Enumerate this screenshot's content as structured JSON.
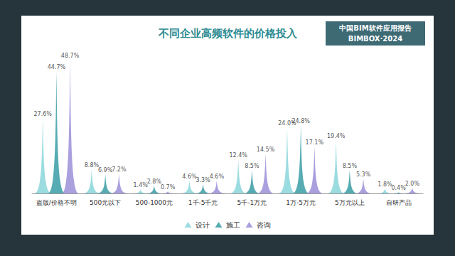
{
  "chart_data": {
    "type": "bar",
    "title": "不同企业高频软件的价格投入",
    "annotations": [
      "中国BIM软件应用报告",
      "BIMBOX·2024"
    ],
    "categories": [
      "盗版/价格不明",
      "500元以下",
      "500-1000元",
      "1千-5千元",
      "5千-1万元",
      "1万-5万元",
      "5万元以上",
      "自研产品"
    ],
    "series": [
      {
        "name": "设计",
        "color": "#8ad6da",
        "values": [
          27.6,
          8.8,
          1.4,
          4.6,
          12.4,
          24.0,
          19.4,
          1.8
        ],
        "value_labels": [
          "27.6%",
          "8.8%",
          "1.4%",
          "4.6%",
          "12.4%",
          "24.0%",
          "19.4%",
          "1.8%"
        ]
      },
      {
        "name": "施工",
        "color": "#3a9ea6",
        "values": [
          44.7,
          6.9,
          2.8,
          3.3,
          8.5,
          24.8,
          8.5,
          0.4
        ],
        "value_labels": [
          "44.7%",
          "6.9%",
          "2.8%",
          "3.3%",
          "8.5%",
          "24.8%",
          "8.5%",
          "0.4%"
        ]
      },
      {
        "name": "咨询",
        "color": "#9b8fd8",
        "values": [
          48.7,
          7.2,
          0.7,
          4.6,
          14.5,
          17.1,
          5.3,
          2.0
        ],
        "value_labels": [
          "48.7%",
          "7.2%",
          "0.7%",
          "4.6%",
          "14.5%",
          "17.1%",
          "5.3%",
          "2.0%"
        ]
      }
    ],
    "ylim": [
      0,
      50
    ],
    "data_labels": true,
    "legend": "bottom",
    "tick_labels": "x",
    "grid": false
  }
}
